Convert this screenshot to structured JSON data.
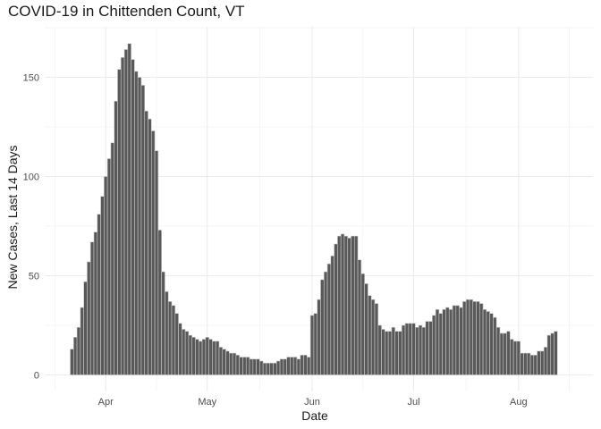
{
  "chart_data": {
    "type": "bar",
    "title": "COVID-19 in Chittenden Count, VT",
    "xlabel": "Date",
    "ylabel": "New Cases, Last 14 Days",
    "x_start_date": "2020-03-22",
    "x_ticks": [
      {
        "label": "Apr",
        "date": "2020-04-01"
      },
      {
        "label": "May",
        "date": "2020-05-01"
      },
      {
        "label": "Jun",
        "date": "2020-06-01"
      },
      {
        "label": "Jul",
        "date": "2020-07-01"
      },
      {
        "label": "Aug",
        "date": "2020-08-01"
      }
    ],
    "y_ticks": [
      0,
      50,
      100,
      150
    ],
    "ylim": [
      0,
      172
    ],
    "bar_color": "#595959",
    "bar_outline": "#cccccc",
    "grid": true,
    "values": [
      13,
      19,
      24,
      34,
      47,
      57,
      67,
      72,
      81,
      90,
      100,
      109,
      117,
      138,
      154,
      160,
      164,
      167,
      159,
      153,
      150,
      146,
      133,
      129,
      123,
      113,
      73,
      52,
      42,
      37,
      35,
      31,
      26,
      23,
      22,
      20,
      19,
      18,
      17,
      18,
      19,
      18,
      17,
      17,
      14,
      13,
      12,
      11,
      11,
      10,
      9,
      9,
      9,
      8,
      8,
      8,
      7,
      6,
      6,
      6,
      6,
      7,
      8,
      8,
      9,
      9,
      9,
      8,
      10,
      10,
      9,
      30,
      31,
      38,
      48,
      52,
      56,
      60,
      66,
      70,
      71,
      70,
      69,
      70,
      70,
      58,
      51,
      46,
      40,
      38,
      36,
      25,
      23,
      22,
      22,
      24,
      22,
      22,
      25,
      26,
      26,
      26,
      24,
      25,
      24,
      27,
      27,
      30,
      33,
      31,
      33,
      34,
      33,
      35,
      35,
      34,
      37,
      38,
      38,
      37,
      37,
      36,
      33,
      32,
      31,
      29,
      24,
      21,
      21,
      22,
      18,
      17,
      17,
      11,
      11,
      11,
      10,
      10,
      12,
      12,
      14,
      20,
      21,
      22
    ]
  }
}
